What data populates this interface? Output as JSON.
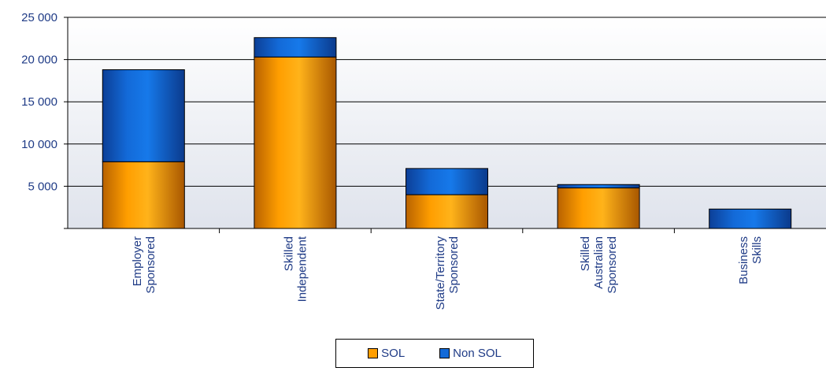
{
  "chart_data": {
    "type": "bar",
    "stacked": true,
    "categories": [
      [
        "Employer",
        "Sponsored"
      ],
      [
        "Skilled",
        "Independent"
      ],
      [
        "State/Territory",
        "Sponsored"
      ],
      [
        "Skilled",
        "Australian",
        "Sponsored"
      ],
      [
        "Business",
        "Skills"
      ]
    ],
    "series": [
      {
        "name": "SOL",
        "values": [
          7900,
          20300,
          4000,
          4800,
          0
        ]
      },
      {
        "name": "Non SOL",
        "values": [
          10900,
          2300,
          3100,
          400,
          2300
        ]
      }
    ],
    "ylim": [
      0,
      25000
    ],
    "yticks": [
      0,
      5000,
      10000,
      15000,
      20000,
      25000
    ],
    "ytick_labels": [
      "",
      "5 000",
      "10 000",
      "15 000",
      "20 000",
      "25 000"
    ],
    "grid": true,
    "legend_position": "bottom",
    "colors": {
      "sol_light": "#ffb31a",
      "sol_dark": "#b86200",
      "nonsol_light": "#1679ea",
      "nonsol_dark": "#0c3f97",
      "text": "#1f3b86"
    }
  }
}
